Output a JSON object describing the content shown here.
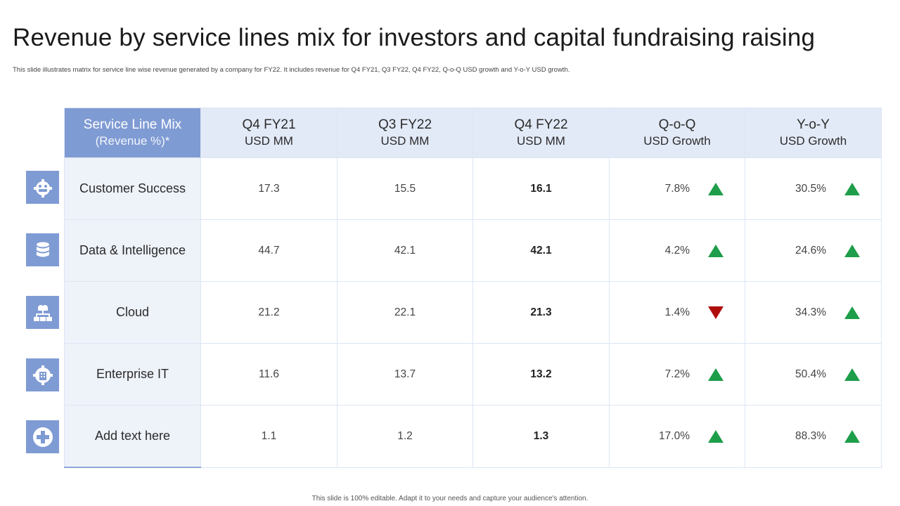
{
  "slide": {
    "title": "Revenue by service lines mix for investors and capital fundraising raising",
    "subtitle": "This slide illustrates matrix for service line wise revenue generated by a company for FY22. It includes revenue for Q4 FY21, Q3 FY22, Q4 FY22, Q-o-Q USD  growth and Y-o-Y USD growth.",
    "footer": "This slide is 100% editable.  Adapt it to your needs and capture your audience's attention."
  },
  "colors": {
    "accent": "#7f9bd3",
    "header_bg": "#e3eaf7",
    "up": "#1e9e4a",
    "down": "#b00d0d"
  },
  "table": {
    "headers": [
      {
        "line1": "Service Line Mix",
        "line2": "(Revenue %)*"
      },
      {
        "line1": "Q4 FY21",
        "line2": "USD MM"
      },
      {
        "line1": "Q3 FY22",
        "line2": "USD MM"
      },
      {
        "line1": "Q4 FY22",
        "line2": "USD MM"
      },
      {
        "line1": "Q-o-Q",
        "line2": "USD Growth"
      },
      {
        "line1": "Y-o-Y",
        "line2": "USD Growth"
      }
    ],
    "rows": [
      {
        "icon": "customer-success-gear-icon",
        "name": "Customer Success",
        "q4fy21": "17.3",
        "q3fy22": "15.5",
        "q4fy22": "16.1",
        "qoq": "7.8%",
        "qoq_trend": "up",
        "yoy": "30.5%",
        "yoy_trend": "up"
      },
      {
        "icon": "database-icon",
        "name": "Data & Intelligence",
        "q4fy21": "44.7",
        "q3fy22": "42.1",
        "q4fy22": "42.1",
        "qoq": "4.2%",
        "qoq_trend": "up",
        "yoy": "24.6%",
        "yoy_trend": "up"
      },
      {
        "icon": "cloud-network-icon",
        "name": "Cloud",
        "q4fy21": "21.2",
        "q3fy22": "22.1",
        "q4fy22": "21.3",
        "qoq": "1.4%",
        "qoq_trend": "down",
        "yoy": "34.3%",
        "yoy_trend": "up"
      },
      {
        "icon": "enterprise-gear-icon",
        "name": "Enterprise IT",
        "q4fy21": "11.6",
        "q3fy22": "13.7",
        "q4fy22": "13.2",
        "qoq": "7.2%",
        "qoq_trend": "up",
        "yoy": "50.4%",
        "yoy_trend": "up"
      },
      {
        "icon": "plus-circle-icon",
        "name": "Add text here",
        "q4fy21": "1.1",
        "q3fy22": "1.2",
        "q4fy22": "1.3",
        "qoq": "17.0%",
        "qoq_trend": "up",
        "yoy": "88.3%",
        "yoy_trend": "up"
      }
    ]
  }
}
